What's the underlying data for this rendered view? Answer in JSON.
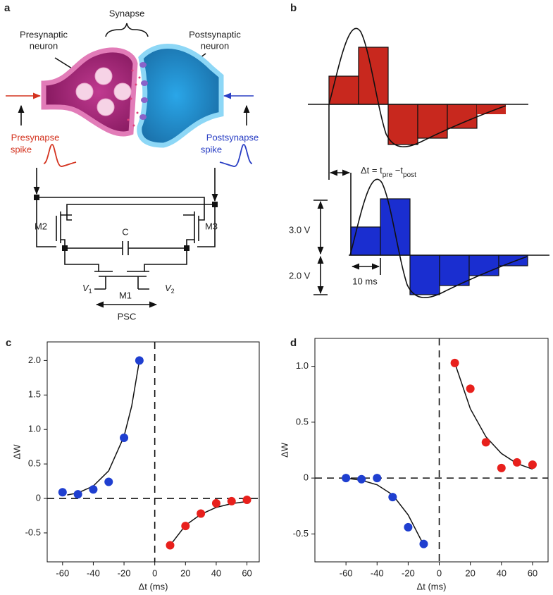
{
  "panel_a": {
    "label": "a",
    "synapse": "Synapse",
    "pre_neuron": [
      "Presynaptic",
      "neuron"
    ],
    "post_neuron": [
      "Postsynaptic",
      "neuron"
    ],
    "pre_spike": [
      "Presynapse",
      "spike"
    ],
    "post_spike": [
      "Postsynapse",
      "spike"
    ],
    "m2": "M2",
    "m3": "M3",
    "m1": "M1",
    "cap": "C",
    "v1": {
      "symbol": "V",
      "sub": "1"
    },
    "v2": {
      "symbol": "V",
      "sub": "2"
    },
    "psc": "PSC"
  },
  "panel_b": {
    "label": "b",
    "dt": {
      "lhs": "Δt = t",
      "pre": "pre",
      "minus": " −t",
      "post": "post"
    },
    "v_high": "3.0 V",
    "v_low": "2.0 V",
    "width": "10 ms"
  },
  "chart_data": [
    {
      "type": "scatter",
      "title": "c",
      "x_label": "Δt (ms)",
      "y_label": "ΔW",
      "xlim": [
        -70,
        68
      ],
      "ylim": [
        -0.92,
        2.27
      ],
      "xticks": [
        -60,
        -40,
        -20,
        0,
        20,
        40,
        60
      ],
      "yticks": [
        -0.5,
        0,
        0.5,
        {
          "value": 1,
          "label": "1.0"
        },
        1.5,
        {
          "value": 2,
          "label": "2.0"
        }
      ],
      "reference_lines": {
        "x": 0,
        "y": 0
      },
      "series": [
        {
          "color": "#1f3fd0",
          "x": [
            -60,
            -50,
            -40,
            -30,
            -20,
            -10
          ],
          "values": [
            0.09,
            0.06,
            0.13,
            0.24,
            0.88,
            2.0
          ]
        },
        {
          "color": "#e8201c",
          "x": [
            10,
            20,
            30,
            40,
            50,
            60
          ],
          "values": [
            -0.68,
            -0.4,
            -0.22,
            -0.07,
            -0.04,
            -0.02
          ]
        }
      ],
      "fits": [
        {
          "x": [
            -57,
            -50,
            -40,
            -30,
            -20,
            -15,
            -10
          ],
          "values": [
            0.05,
            0.08,
            0.18,
            0.4,
            0.9,
            1.34,
            2.0
          ]
        },
        {
          "x": [
            10,
            20,
            30,
            40,
            50,
            60
          ],
          "values": [
            -0.68,
            -0.39,
            -0.23,
            -0.13,
            -0.075,
            -0.044
          ]
        }
      ]
    },
    {
      "type": "scatter",
      "title": "d",
      "x_label": "Δt (ms)",
      "y_label": "ΔW",
      "xlim": [
        -80,
        70
      ],
      "ylim": [
        -0.75,
        1.25
      ],
      "xticks": [
        -60,
        -40,
        -20,
        0,
        20,
        40,
        60
      ],
      "yticks": [
        -0.5,
        0,
        0.5,
        {
          "value": 1,
          "label": "1.0"
        }
      ],
      "reference_lines": {
        "x": 0,
        "y": 0
      },
      "series": [
        {
          "color": "#1f3fd0",
          "x": [
            -60,
            -50,
            -40,
            -30,
            -20,
            -10
          ],
          "values": [
            0,
            -0.01,
            0,
            -0.17,
            -0.44,
            -0.59
          ]
        },
        {
          "color": "#e8201c",
          "x": [
            10,
            20,
            30,
            40,
            50,
            60
          ],
          "values": [
            1.03,
            0.8,
            0.32,
            0.09,
            0.14,
            0.12
          ]
        }
      ],
      "fits": [
        {
          "x": [
            -60,
            -50,
            -40,
            -30,
            -20,
            -10
          ],
          "values": [
            0,
            -0.02,
            -0.06,
            -0.15,
            -0.33,
            -0.6
          ]
        },
        {
          "x": [
            10,
            20,
            30,
            40,
            50,
            60
          ],
          "values": [
            1.03,
            0.62,
            0.37,
            0.22,
            0.13,
            0.08
          ]
        }
      ]
    }
  ]
}
